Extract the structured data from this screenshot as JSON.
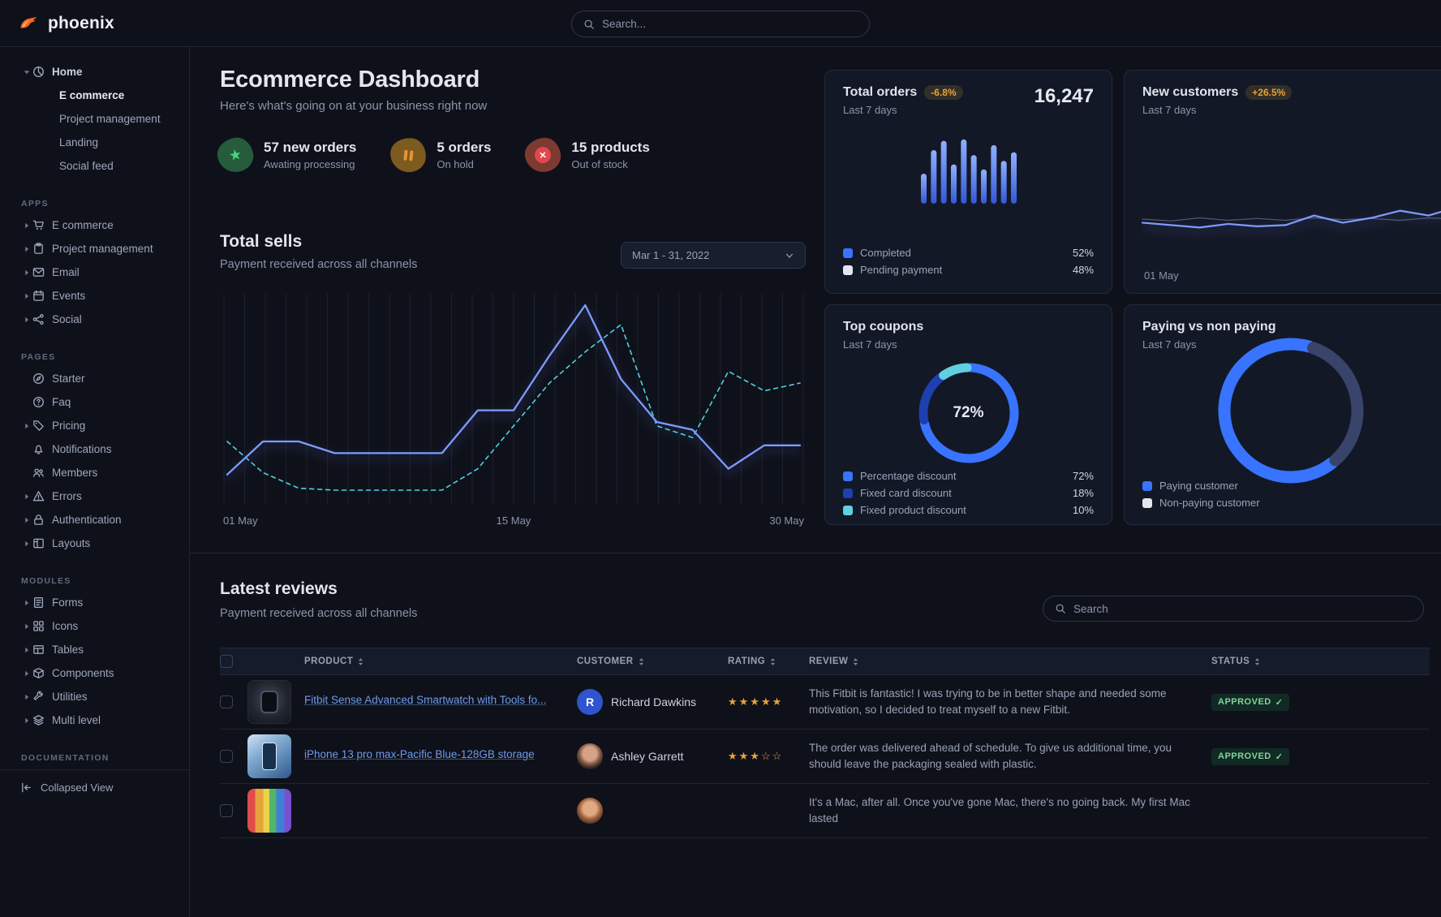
{
  "brand": {
    "name": "phoenix"
  },
  "topnav": {
    "search_placeholder": "Search..."
  },
  "sidebar": {
    "home": {
      "label": "Home",
      "icon": "pie",
      "children": [
        {
          "label": "E commerce",
          "active": true
        },
        {
          "label": "Project management",
          "active": false
        },
        {
          "label": "Landing",
          "active": false
        },
        {
          "label": "Social feed",
          "active": false
        }
      ]
    },
    "sections": [
      {
        "title": "APPS",
        "items": [
          {
            "label": "E commerce",
            "icon": "cart",
            "caret": true
          },
          {
            "label": "Project management",
            "icon": "clipboard",
            "caret": true
          },
          {
            "label": "Email",
            "icon": "mail",
            "caret": true
          },
          {
            "label": "Events",
            "icon": "calendar",
            "caret": true
          },
          {
            "label": "Social",
            "icon": "share",
            "caret": true
          }
        ]
      },
      {
        "title": "PAGES",
        "items": [
          {
            "label": "Starter",
            "icon": "compass",
            "caret": false
          },
          {
            "label": "Faq",
            "icon": "question",
            "caret": false
          },
          {
            "label": "Pricing",
            "icon": "tag",
            "caret": true
          },
          {
            "label": "Notifications",
            "icon": "bell",
            "caret": false
          },
          {
            "label": "Members",
            "icon": "users",
            "caret": false
          },
          {
            "label": "Errors",
            "icon": "warning",
            "caret": true
          },
          {
            "label": "Authentication",
            "icon": "lock",
            "caret": true
          },
          {
            "label": "Layouts",
            "icon": "layout",
            "caret": true
          }
        ]
      },
      {
        "title": "MODULES",
        "items": [
          {
            "label": "Forms",
            "icon": "form",
            "caret": true
          },
          {
            "label": "Icons",
            "icon": "grid",
            "caret": true
          },
          {
            "label": "Tables",
            "icon": "table",
            "caret": true
          },
          {
            "label": "Components",
            "icon": "box",
            "caret": true
          },
          {
            "label": "Utilities",
            "icon": "wrench",
            "caret": true
          },
          {
            "label": "Multi level",
            "icon": "layers",
            "caret": true
          }
        ]
      },
      {
        "title": "DOCUMENTATION",
        "items": []
      }
    ],
    "collapsed_label": "Collapsed View"
  },
  "page": {
    "title": "Ecommerce Dashboard",
    "subtitle": "Here's what's going on at your business right now"
  },
  "stats": [
    {
      "value": "57 new orders",
      "caption": "Awating processing",
      "icon": "star",
      "accent": "#45d683"
    },
    {
      "value": "5 orders",
      "caption": "On hold",
      "icon": "pause",
      "accent": "#e89235"
    },
    {
      "value": "15 products",
      "caption": "Out of stock",
      "icon": "x-circle",
      "accent": "#e0484d"
    }
  ],
  "total_sells": {
    "title": "Total sells",
    "subtitle": "Payment received across all channels",
    "date_range": "Mar 1 - 31, 2022"
  },
  "cards": {
    "total_orders": {
      "title": "Total orders",
      "badge": "-6.8%",
      "period": "Last 7 days",
      "value": "16,247",
      "legend": [
        {
          "label": "Completed",
          "value": "52%",
          "color": "#3874ff"
        },
        {
          "label": "Pending payment",
          "value": "48%",
          "color": "#e3e6ed"
        }
      ]
    },
    "new_customers": {
      "title": "New customers",
      "badge": "+26.5%",
      "period": "Last 7 days",
      "x_label": "01 May"
    },
    "top_coupons": {
      "title": "Top coupons",
      "period": "Last 7 days",
      "legend": [
        {
          "label": "Percentage discount",
          "value": "72%",
          "color": "#3874ff"
        },
        {
          "label": "Fixed card discount",
          "value": "18%",
          "color": "#1e3fae"
        },
        {
          "label": "Fixed product discount",
          "value": "10%",
          "color": "#60cfe0"
        }
      ]
    },
    "paying_vs_non_paying": {
      "title": "Paying vs non paying",
      "period": "Last 7 days",
      "legend": [
        {
          "label": "Paying customer",
          "color": "#3874ff"
        },
        {
          "label": "Non-paying customer",
          "color": "#e3e6ed"
        }
      ]
    }
  },
  "reviews": {
    "title": "Latest reviews",
    "subtitle": "Payment received across all channels",
    "search_placeholder": "Search",
    "columns": [
      "PRODUCT",
      "CUSTOMER",
      "RATING",
      "REVIEW",
      "STATUS"
    ],
    "rows": [
      {
        "product": "Fitbit Sense Advanced Smartwatch with Tools fo...",
        "thumb": "smartwatch-dark",
        "customer": "Richard Dawkins",
        "avatar": "initial-R",
        "rating": 5,
        "review": "This Fitbit is fantastic! I was trying to be in better shape and needed some motivation, so I decided to treat myself to a new Fitbit.",
        "status": "APPROVED"
      },
      {
        "product": "iPhone 13 pro max-Pacific Blue-128GB storage",
        "thumb": "iphone-blue",
        "customer": "Ashley Garrett",
        "avatar": "photo-female",
        "rating": 3,
        "review": "The order was delivered ahead of schedule. To give us additional time, you should leave the packaging sealed with plastic.",
        "status": "APPROVED"
      },
      {
        "product": "",
        "thumb": "macbook-colorful",
        "customer": "",
        "avatar": "photo-male",
        "rating": null,
        "review": "It's a Mac, after all. Once you've gone Mac, there's no going back. My first Mac lasted",
        "status": ""
      }
    ]
  },
  "chart_data": [
    {
      "id": "total-sells",
      "type": "line",
      "title": "Total sells",
      "x_axis": {
        "labels": [
          "01 May",
          "15 May",
          "30 May"
        ]
      },
      "ylim": [
        0,
        100
      ],
      "grid": "vertical",
      "series": [
        {
          "name": "current-period",
          "style": "solid",
          "color": "#7e9bff",
          "values": [
            13,
            30,
            30,
            24,
            24,
            24,
            24,
            46,
            46,
            74,
            100,
            62,
            40,
            36,
            16,
            28,
            28
          ]
        },
        {
          "name": "previous-period",
          "style": "dashed",
          "color": "#4fd1e2",
          "values": [
            30,
            14,
            6,
            5,
            5,
            5,
            5,
            16,
            38,
            60,
            76,
            90,
            38,
            32,
            66,
            56,
            60
          ]
        }
      ]
    },
    {
      "id": "total-orders",
      "type": "bar",
      "values": [
        42,
        75,
        88,
        55,
        90,
        68,
        48,
        82,
        60,
        72
      ],
      "color_top": "#8fb0ff",
      "color_bottom": "#3357d8"
    },
    {
      "id": "new-customers",
      "type": "line",
      "x_label": "01 May",
      "series": [
        {
          "name": "baseline",
          "style": "solid",
          "color": "#4c5878",
          "values": [
            50,
            47,
            52,
            48,
            51,
            48,
            52,
            49,
            51,
            48,
            52,
            50
          ]
        },
        {
          "name": "customers",
          "style": "solid",
          "color": "#7e9bff",
          "values": [
            44,
            40,
            36,
            42,
            38,
            40,
            56,
            44,
            52,
            64,
            56,
            70
          ]
        }
      ]
    },
    {
      "id": "top-coupons",
      "type": "donut",
      "center_label": "72%",
      "segments": [
        {
          "label": "Percentage discount",
          "value": 72,
          "color": "#3874ff"
        },
        {
          "label": "Fixed card discount",
          "value": 18,
          "color": "#1e3fae"
        },
        {
          "label": "Fixed product discount",
          "value": 10,
          "color": "#60cfe0"
        }
      ]
    },
    {
      "id": "paying-vs-non-paying",
      "type": "donut",
      "segments": [
        {
          "label": "Paying customer",
          "value": 66,
          "color": "#3874ff"
        },
        {
          "label": "Non-paying customer",
          "value": 34,
          "color": "#39446b"
        }
      ]
    }
  ]
}
